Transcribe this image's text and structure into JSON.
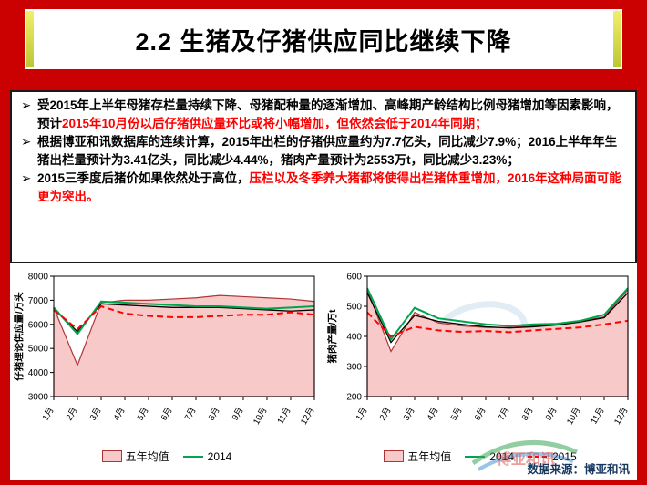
{
  "slide": {
    "title": "2.2 生猪及仔猪供应同比继续下降",
    "bullet_marker": "➢",
    "bullets": [
      {
        "segments": [
          {
            "text": "受2015年上半年母猪存栏量持续下降、母猪配种量的逐渐增加、高峰期产龄结构比例母猪增加等因素影响，预计",
            "red": false
          },
          {
            "text": "2015年10月份以后仔猪供应量环比或将小幅增加，但依然会低于2014年同期；",
            "red": true
          }
        ]
      },
      {
        "segments": [
          {
            "text": "根据博亚和讯数据库的连续计算，2015年出栏的仔猪供应量约为7.7亿头，同比减少7.9%；2016上半年年生猪出栏量预计为3.41亿头，同比减少4.44%，猪肉产量预计为2553万t，同比减少3.23%；",
            "red": false
          }
        ]
      },
      {
        "segments": [
          {
            "text": "2015三季度后猪价如果依然处于高位，",
            "red": false
          },
          {
            "text": "压栏以及冬季养大猪都将使得出栏猪体重增加，2016年这种局面可能更为突出。",
            "red": true
          }
        ]
      }
    ],
    "source": "数据来源：博亚和讯",
    "watermark_text": "博亚和讯",
    "colors": {
      "frame_red": "#cb0000",
      "highlight_red": "#ff0000",
      "band_pink": "#f7c9c9",
      "band_edge": "#b03535",
      "line_2014_green": "#00a550",
      "line_2015_red": "#ff0000",
      "mean_line_black": "#000000",
      "source_navy": "#17375e",
      "title_accent_yellow": "#e8e24f"
    }
  },
  "chart_data": [
    {
      "type": "area",
      "name": "piglet-supply",
      "title": "",
      "ylabel": "仔猪理论供应量/万头",
      "xlabel": "",
      "ylim": [
        3000,
        8000
      ],
      "yticks": [
        3000,
        4000,
        5000,
        6000,
        7000,
        8000
      ],
      "categories": [
        "1月",
        "2月",
        "3月",
        "4月",
        "5月",
        "6月",
        "7月",
        "8月",
        "9月",
        "10月",
        "11月",
        "12月"
      ],
      "series": [
        {
          "name": "五年均值",
          "style": "area",
          "color": "#f7c9c9",
          "edge": "#b03535",
          "values": [
            6700,
            4300,
            6900,
            7000,
            7000,
            7050,
            7100,
            7200,
            7150,
            7100,
            7050,
            6950
          ]
        },
        {
          "name": "",
          "style": "line",
          "color": "#000000",
          "width": 1.3,
          "values": [
            6650,
            5700,
            6850,
            6800,
            6750,
            6700,
            6700,
            6700,
            6650,
            6600,
            6550,
            6600
          ]
        },
        {
          "name": "2014",
          "style": "line",
          "color": "#00a550",
          "width": 2,
          "values": [
            6700,
            5600,
            6950,
            6900,
            6850,
            6800,
            6750,
            6750,
            6700,
            6650,
            6700,
            6750
          ]
        },
        {
          "name": "2015",
          "style": "dashed",
          "color": "#ff0000",
          "width": 2,
          "values": [
            6600,
            5800,
            6750,
            6450,
            6350,
            6300,
            6300,
            6350,
            6400,
            6400,
            6500,
            6400
          ]
        }
      ],
      "legend": [
        "五年均值",
        "2014"
      ],
      "grid": false
    },
    {
      "type": "area",
      "name": "pork-output",
      "title": "",
      "ylabel": "猪肉产量/万t",
      "xlabel": "",
      "ylim": [
        200,
        600
      ],
      "yticks": [
        200,
        300,
        400,
        500,
        600
      ],
      "categories": [
        "1月",
        "2月",
        "3月",
        "4月",
        "5月",
        "6月",
        "7月",
        "8月",
        "9月",
        "10月",
        "11月",
        "12月"
      ],
      "series": [
        {
          "name": "五年均值",
          "style": "area",
          "color": "#f7c9c9",
          "edge": "#b03535",
          "values": [
            555,
            350,
            480,
            445,
            435,
            430,
            430,
            435,
            440,
            450,
            465,
            555
          ]
        },
        {
          "name": "",
          "style": "line",
          "color": "#000000",
          "width": 1.3,
          "values": [
            545,
            380,
            470,
            450,
            440,
            432,
            428,
            432,
            438,
            448,
            462,
            545
          ]
        },
        {
          "name": "2014",
          "style": "line",
          "color": "#00a550",
          "width": 2,
          "values": [
            560,
            390,
            495,
            460,
            450,
            440,
            435,
            440,
            442,
            452,
            472,
            560
          ]
        },
        {
          "name": "2015",
          "style": "dashed",
          "color": "#ff0000",
          "width": 2,
          "values": [
            480,
            400,
            432,
            420,
            415,
            418,
            414,
            420,
            425,
            430,
            440,
            452
          ]
        }
      ],
      "legend": [
        "五年均值",
        "2014",
        "2015"
      ],
      "grid": false
    }
  ]
}
